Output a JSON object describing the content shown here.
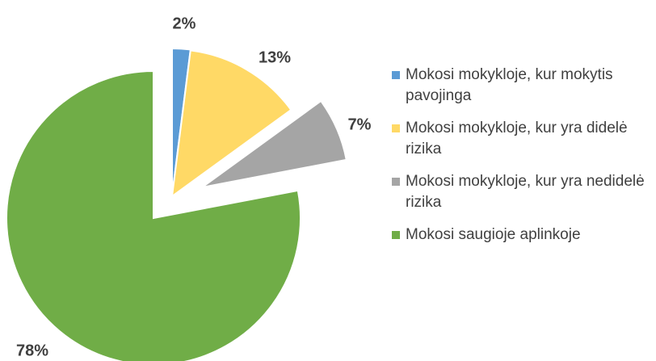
{
  "chart_data": {
    "type": "pie",
    "categories": [
      "Mokosi mokykloje, kur mokytis pavojinga",
      "Mokosi mokykloje, kur yra didelė rizika",
      "Mokosi mokykloje, kur yra nedidelė rizika",
      "Mokosi saugioje aplinkoje"
    ],
    "values": [
      2,
      13,
      7,
      78
    ],
    "value_labels": [
      "2%",
      "13%",
      "7%",
      "78%"
    ],
    "colors": [
      "#5b9bd5",
      "#ffd966",
      "#a5a5a5",
      "#70ad47"
    ],
    "legend": "right"
  }
}
